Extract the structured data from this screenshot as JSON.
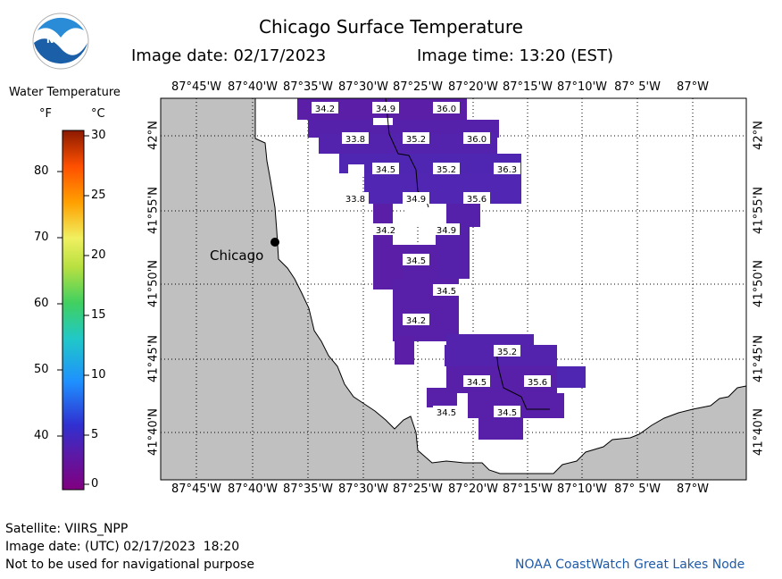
{
  "header": {
    "title": "Chicago Surface Temperature",
    "image_date": "Image date: 02/17/2023",
    "image_time": "Image time: 13:20 (EST)"
  },
  "logo": {
    "text": "NOAA"
  },
  "legend": {
    "title": "Water Temperature",
    "unit_f": "°F",
    "unit_c": "°C",
    "f_ticks": [
      "80",
      "70",
      "60",
      "50",
      "40"
    ],
    "c_ticks": [
      "30",
      "25",
      "20",
      "15",
      "10",
      "5",
      "0"
    ]
  },
  "axes": {
    "lon_labels": [
      "87°45'W",
      "87°40'W",
      "87°35'W",
      "87°30'W",
      "87°25'W",
      "87°20'W",
      "87°15'W",
      "87°10'W",
      "87° 5'W",
      "87°W"
    ],
    "lat_labels": [
      "42°N",
      "41°55'N",
      "41°50'N",
      "41°45'N",
      "41°40'N"
    ]
  },
  "city": {
    "name": "Chicago"
  },
  "temperatures": [
    {
      "v": "34.2",
      "c": "#5a1fa6"
    },
    {
      "v": "34.9",
      "c": "#5621aa"
    },
    {
      "v": "36.0",
      "c": "#4a2ab8"
    },
    {
      "v": "33.8",
      "c": "#5c1ea3"
    },
    {
      "v": "35.2",
      "c": "#5323ad"
    },
    {
      "v": "36.0",
      "c": "#4a2ab8"
    },
    {
      "v": "34.5",
      "c": "#5820a8"
    },
    {
      "v": "35.2",
      "c": "#5323ad"
    },
    {
      "v": "36.3",
      "c": "#482cbc"
    },
    {
      "v": "33.8",
      "c": "#5c1ea3"
    },
    {
      "v": "34.9",
      "c": "#5621aa"
    },
    {
      "v": "35.6",
      "c": "#5026b2"
    },
    {
      "v": "34.2",
      "c": "#5a1fa6"
    },
    {
      "v": "34.9",
      "c": "#5621aa"
    },
    {
      "v": "34.5",
      "c": "#5820a8"
    },
    {
      "v": "34.5",
      "c": "#5820a8"
    },
    {
      "v": "34.2",
      "c": "#5a1fa6"
    },
    {
      "v": "35.2",
      "c": "#5323ad"
    },
    {
      "v": "34.5",
      "c": "#5820a8"
    },
    {
      "v": "35.6",
      "c": "#5026b2"
    },
    {
      "v": "34.5",
      "c": "#5820a8"
    },
    {
      "v": "34.5",
      "c": "#5820a8"
    }
  ],
  "footer": {
    "satellite": "Satellite: VIIRS_NPP",
    "utc_date": "Image date: (UTC) 02/17/2023  18:20",
    "disclaimer": "Not to be used for navigational purpose",
    "credit": "NOAA CoastWatch Great Lakes Node"
  },
  "colors": {
    "land": "#c0c0c0",
    "water_none": "#ffffff",
    "credit": "#1e5aa8"
  }
}
